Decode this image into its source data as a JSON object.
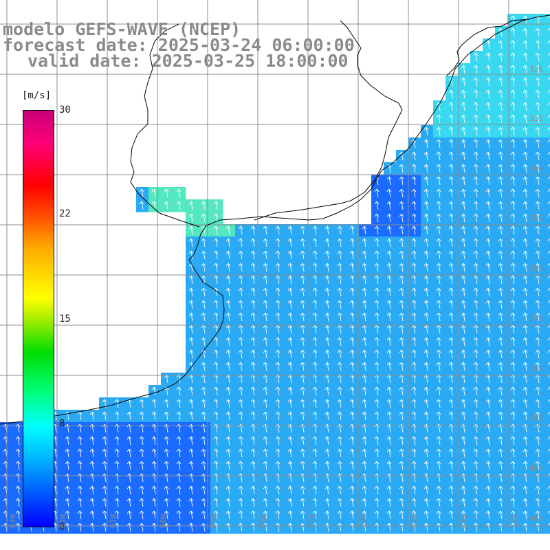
{
  "title": {
    "line1": "modelo GEFS-WAVE (NCEP)",
    "line2": "forecast date: 2025-03-24 06:00:00",
    "line3": "valid date: 2025-03-25 18:00:00"
  },
  "colorbar": {
    "unit": "[m/s]",
    "ticks": [
      {
        "label": "30",
        "value": 30
      },
      {
        "label": "22",
        "value": 22
      },
      {
        "label": "15",
        "value": 15
      },
      {
        "label": "8",
        "value": 8
      },
      {
        "label": "0",
        "value": 0
      }
    ],
    "colors": [
      "#0000ff",
      "#00b0ff",
      "#00ffff",
      "#00ff80",
      "#00dd00",
      "#ffff00",
      "#ff5500",
      "#ff0000",
      "#c80078"
    ]
  },
  "lat_labels": [
    "32S",
    "33S",
    "34S",
    "35S",
    "36S",
    "37S",
    "38S",
    "39S",
    "40S",
    "41S"
  ],
  "lon_labels": [
    "63W",
    "62W",
    "61W",
    "60W",
    "59W",
    "58W",
    "57W",
    "56W",
    "55W",
    "54W",
    "53W"
  ],
  "colors": {
    "land": "#ffffff",
    "grid": "#8c8c8c",
    "coast": "#000000",
    "arrow": "#ffffff",
    "sea_low": "#1a6bff",
    "sea_mid": "#2aaaf5",
    "sea_high": "#3ad8f0",
    "sea_coast": "#55e8c0"
  }
}
